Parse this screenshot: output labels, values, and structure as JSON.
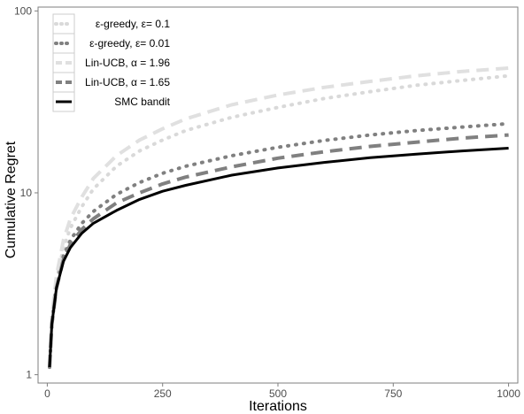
{
  "chart_data": {
    "type": "line",
    "title": "",
    "xlabel": "Iterations",
    "ylabel": "Cumulative Regret",
    "xlim": [
      -20,
      1020
    ],
    "ylim": [
      0.9,
      105
    ],
    "y_scale": "log",
    "x_ticks": [
      0,
      250,
      500,
      750,
      1000
    ],
    "x_tick_labels": [
      "0",
      "250",
      "500",
      "750",
      "1000"
    ],
    "y_ticks": [
      1,
      10,
      100
    ],
    "y_tick_labels": [
      "1",
      "10",
      "100"
    ],
    "grid": false,
    "legend_position": "top-left",
    "x": [
      5,
      10,
      20,
      35,
      50,
      75,
      100,
      150,
      200,
      250,
      300,
      400,
      500,
      600,
      700,
      800,
      900,
      1000
    ],
    "series": [
      {
        "name": "ε-greedy, ε= 0.1",
        "color": "#d9d9d9",
        "dash": "dotted",
        "values": [
          1.1,
          2.0,
          3.3,
          5.0,
          6.4,
          8.4,
          10.5,
          14.0,
          17.0,
          19.5,
          22.0,
          26.0,
          29.5,
          33.0,
          36.0,
          39.0,
          41.5,
          44.0
        ]
      },
      {
        "name": "ε-greedy, ε= 0.01",
        "color": "#808080",
        "dash": "dotted",
        "values": [
          1.1,
          1.9,
          3.1,
          4.5,
          5.5,
          6.8,
          7.9,
          9.8,
          11.4,
          12.8,
          14.0,
          16.0,
          17.8,
          19.4,
          20.8,
          22.0,
          23.0,
          24.0
        ]
      },
      {
        "name": "Lin-UCB, α = 1.96",
        "color": "#e0e0e0",
        "dash": "dashed",
        "values": [
          1.1,
          2.1,
          3.5,
          5.5,
          7.2,
          9.5,
          12.0,
          16.0,
          19.5,
          22.5,
          25.5,
          30.5,
          34.5,
          38.0,
          41.0,
          44.0,
          46.5,
          48.5
        ]
      },
      {
        "name": "Lin-UCB, α = 1.65",
        "color": "#808080",
        "dash": "dashed",
        "values": [
          1.1,
          1.9,
          3.0,
          4.3,
          5.2,
          6.3,
          7.2,
          8.8,
          10.0,
          11.2,
          12.2,
          13.9,
          15.5,
          16.8,
          18.0,
          19.0,
          20.0,
          20.8
        ]
      },
      {
        "name": "SMC bandit",
        "color": "#000000",
        "dash": "solid",
        "values": [
          1.1,
          1.9,
          3.0,
          4.2,
          5.0,
          6.0,
          6.8,
          8.0,
          9.2,
          10.2,
          11.0,
          12.5,
          13.7,
          14.7,
          15.6,
          16.3,
          17.0,
          17.6
        ]
      }
    ]
  }
}
